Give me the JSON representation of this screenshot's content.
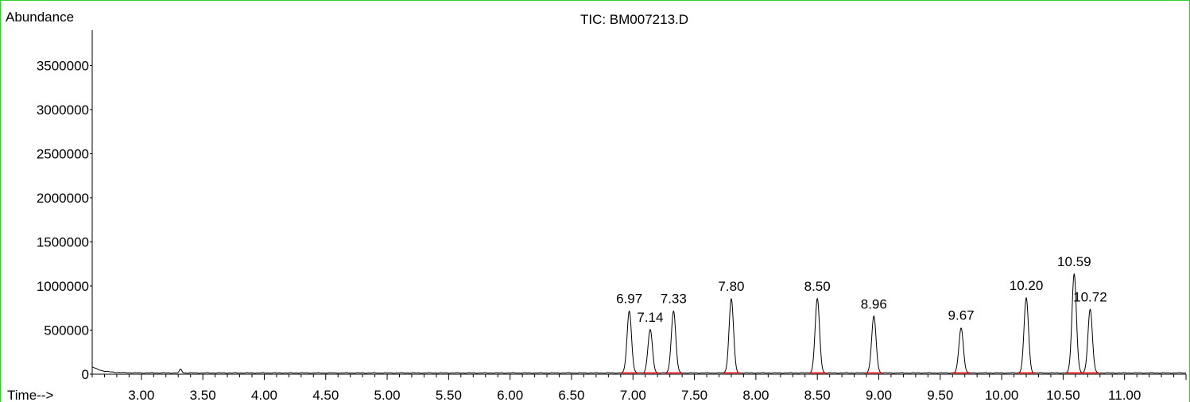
{
  "chart_data": {
    "type": "line",
    "title": "TIC: BM007213.D",
    "ylabel": "Abundance",
    "xlabel": "Time-->",
    "xlim": [
      2.6,
      11.5
    ],
    "ylim": [
      0,
      3900000
    ],
    "yticks": [
      0,
      500000,
      1000000,
      1500000,
      2000000,
      2500000,
      3000000,
      3500000
    ],
    "ytick_labels": [
      "0",
      "500000",
      "1000000",
      "1500000",
      "2000000",
      "2500000",
      "3000000",
      "3500000"
    ],
    "xticks": [
      3.0,
      3.5,
      4.0,
      4.5,
      5.0,
      5.5,
      6.0,
      6.5,
      7.0,
      7.5,
      8.0,
      8.5,
      9.0,
      9.5,
      10.0,
      10.5,
      11.0
    ],
    "xtick_labels": [
      "3.00",
      "3.50",
      "4.00",
      "4.50",
      "5.00",
      "5.50",
      "6.00",
      "6.50",
      "7.00",
      "7.50",
      "8.00",
      "8.50",
      "9.00",
      "9.50",
      "10.00",
      "10.50",
      "11.00"
    ],
    "baseline": 15000,
    "peaks": [
      {
        "rt": 6.97,
        "label": "6.97",
        "height": 700000
      },
      {
        "rt": 7.14,
        "label": "7.14",
        "height": 490000
      },
      {
        "rt": 7.33,
        "label": "7.33",
        "height": 700000
      },
      {
        "rt": 7.8,
        "label": "7.80",
        "height": 840000
      },
      {
        "rt": 8.5,
        "label": "8.50",
        "height": 840000
      },
      {
        "rt": 8.96,
        "label": "8.96",
        "height": 640000
      },
      {
        "rt": 9.67,
        "label": "9.67",
        "height": 510000
      },
      {
        "rt": 10.2,
        "label": "10.20",
        "height": 850000
      },
      {
        "rt": 10.59,
        "label": "10.59",
        "height": 1120000
      },
      {
        "rt": 10.72,
        "label": "10.72",
        "height": 720000
      }
    ],
    "colors": {
      "trace": "#000000",
      "integration": "#ff0000",
      "frame": "#33cc33"
    },
    "grid": false,
    "legend": "none"
  }
}
